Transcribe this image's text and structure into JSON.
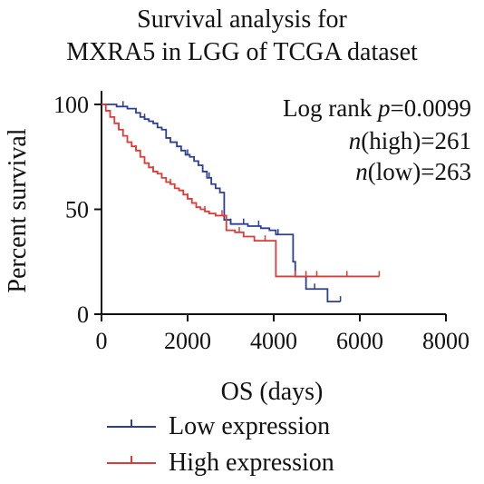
{
  "chart_data": {
    "type": "line",
    "title_lines": [
      "Survival analysis for",
      "MXRA5 in LGG of TCGA dataset"
    ],
    "xlabel": "OS (days)",
    "ylabel": "Percent survival",
    "xlim": [
      0,
      8000
    ],
    "ylim": [
      0,
      100
    ],
    "xticks": [
      "0",
      "2000",
      "4000",
      "6000",
      "8000"
    ],
    "yticks": [
      "0",
      "50",
      "100"
    ],
    "annotations": {
      "pvalue": {
        "prefix": "Log rank ",
        "italic": "p",
        "suffix": "=0.0099"
      },
      "n_high": {
        "italic": "n",
        "suffix": "(high)=261"
      },
      "n_low": {
        "italic": "n",
        "suffix": "(low)=263"
      }
    },
    "legend": {
      "position": "bottom"
    },
    "series": [
      {
        "name": "Low expression",
        "color": "#2c3f95",
        "points": [
          [
            0,
            100
          ],
          [
            150,
            100
          ],
          [
            350,
            99
          ],
          [
            600,
            98
          ],
          [
            800,
            96
          ],
          [
            900,
            94
          ],
          [
            1000,
            93
          ],
          [
            1100,
            92
          ],
          [
            1200,
            91
          ],
          [
            1300,
            89
          ],
          [
            1400,
            88
          ],
          [
            1500,
            84
          ],
          [
            1600,
            82
          ],
          [
            1750,
            80
          ],
          [
            1850,
            78
          ],
          [
            1950,
            76
          ],
          [
            2050,
            75
          ],
          [
            2150,
            73
          ],
          [
            2250,
            71
          ],
          [
            2350,
            68
          ],
          [
            2450,
            65
          ],
          [
            2550,
            62
          ],
          [
            2650,
            60
          ],
          [
            2750,
            58
          ],
          [
            2850,
            45
          ],
          [
            3000,
            43
          ],
          [
            3200,
            43
          ],
          [
            3400,
            42
          ],
          [
            3550,
            42
          ],
          [
            3700,
            41
          ],
          [
            3900,
            40
          ],
          [
            4050,
            38
          ],
          [
            4150,
            38
          ],
          [
            4300,
            38
          ],
          [
            4450,
            25
          ],
          [
            4500,
            18
          ],
          [
            4700,
            18
          ],
          [
            4750,
            12
          ],
          [
            5200,
            12
          ],
          [
            5250,
            6
          ],
          [
            5550,
            6
          ]
        ],
        "censor": [
          [
            500,
            98.5
          ],
          [
            1000,
            93
          ],
          [
            1500,
            84
          ],
          [
            2000,
            76
          ],
          [
            2500,
            63
          ],
          [
            3000,
            43
          ],
          [
            3300,
            43
          ],
          [
            3650,
            41
          ],
          [
            4100,
            38
          ],
          [
            4950,
            12
          ],
          [
            5550,
            6
          ]
        ]
      },
      {
        "name": "High expression",
        "color": "#e03a36",
        "points": [
          [
            0,
            100
          ],
          [
            100,
            97
          ],
          [
            200,
            94
          ],
          [
            300,
            91
          ],
          [
            400,
            88
          ],
          [
            500,
            85
          ],
          [
            600,
            82
          ],
          [
            700,
            80
          ],
          [
            800,
            78
          ],
          [
            900,
            75
          ],
          [
            1000,
            72
          ],
          [
            1100,
            70
          ],
          [
            1200,
            68
          ],
          [
            1300,
            67
          ],
          [
            1400,
            65
          ],
          [
            1500,
            63
          ],
          [
            1600,
            62
          ],
          [
            1700,
            60
          ],
          [
            1800,
            59
          ],
          [
            1900,
            57
          ],
          [
            2000,
            55
          ],
          [
            2100,
            53
          ],
          [
            2200,
            51
          ],
          [
            2300,
            50
          ],
          [
            2400,
            49
          ],
          [
            2500,
            48
          ],
          [
            2650,
            47
          ],
          [
            2800,
            47
          ],
          [
            2900,
            40
          ],
          [
            3100,
            39
          ],
          [
            3300,
            37
          ],
          [
            3550,
            35
          ],
          [
            4000,
            35
          ],
          [
            4050,
            18
          ],
          [
            4200,
            18
          ],
          [
            4700,
            18
          ],
          [
            5500,
            18
          ],
          [
            6450,
            18
          ]
        ],
        "censor": [
          [
            400,
            88
          ],
          [
            800,
            78
          ],
          [
            1200,
            68
          ],
          [
            1600,
            62
          ],
          [
            2000,
            55
          ],
          [
            2400,
            49
          ],
          [
            2800,
            47
          ],
          [
            3200,
            38
          ],
          [
            3800,
            35
          ],
          [
            4500,
            18
          ],
          [
            4750,
            18
          ],
          [
            5000,
            18
          ],
          [
            5700,
            18
          ],
          [
            6450,
            18
          ]
        ]
      }
    ]
  }
}
